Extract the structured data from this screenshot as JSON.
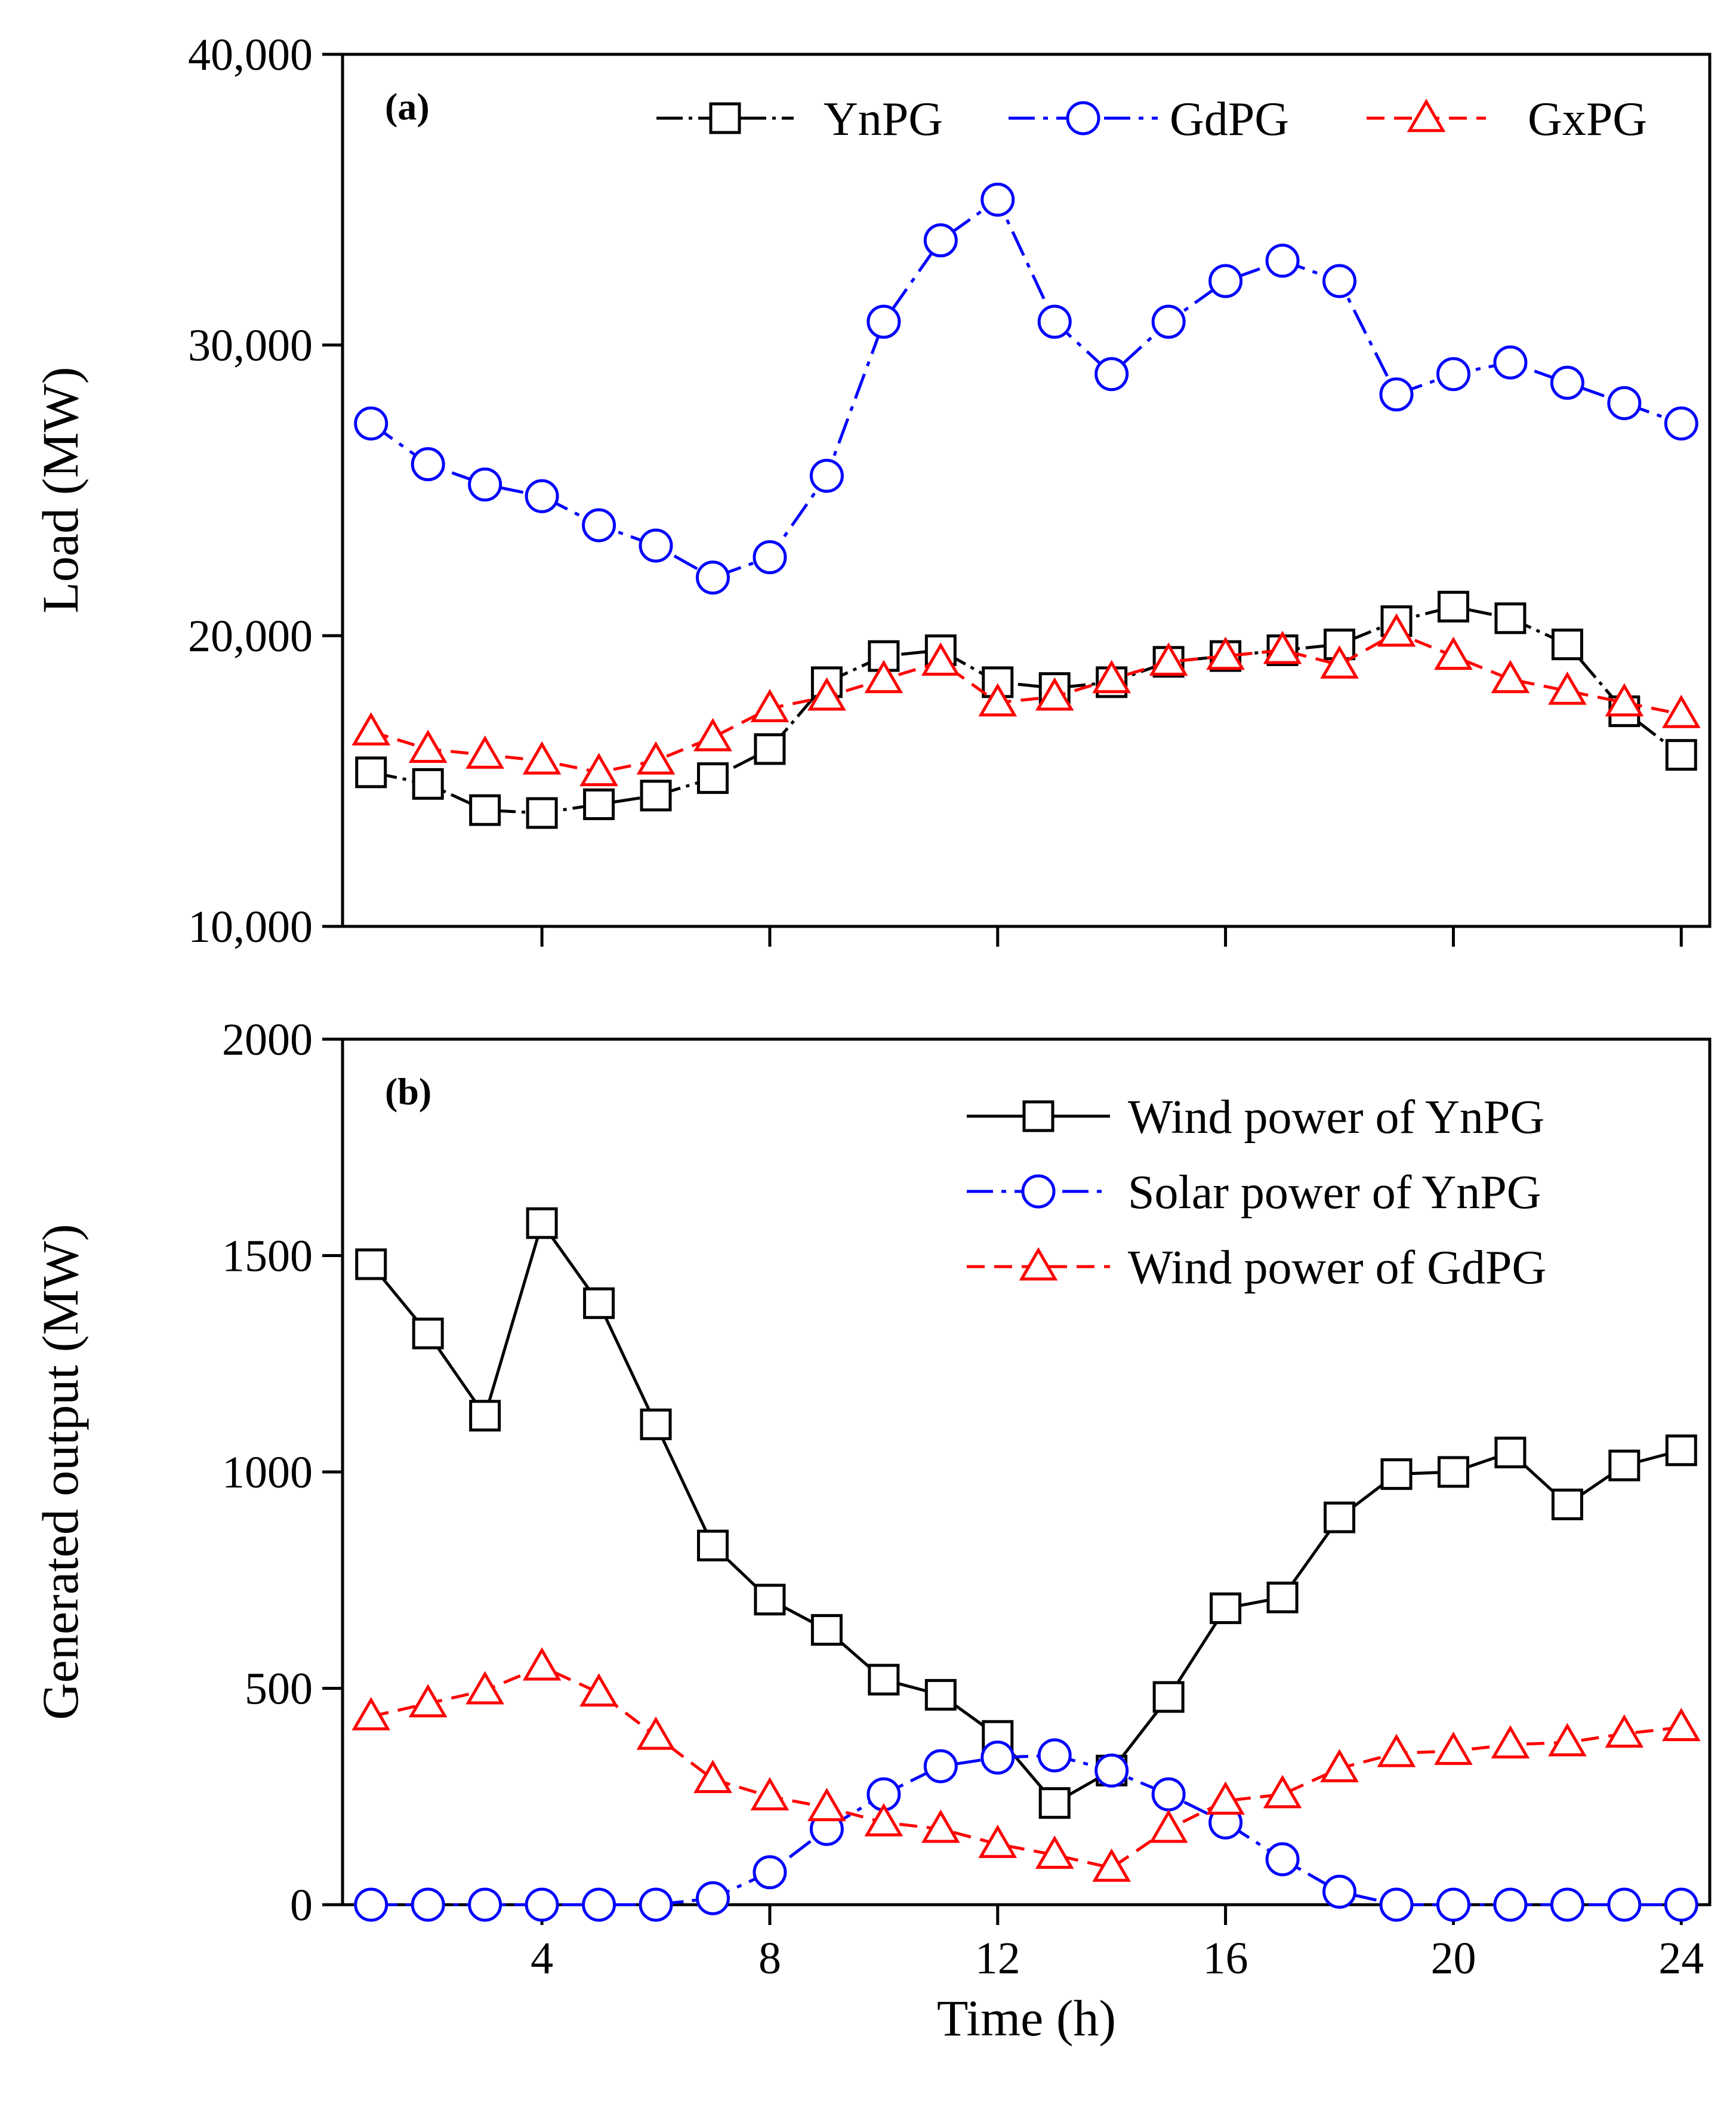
{
  "chart_data": [
    {
      "id": "a",
      "type": "line",
      "panel_label": "(a)",
      "title": "",
      "xlabel": "",
      "ylabel": "Load (MW)",
      "xlim": [
        0.5,
        24.5
      ],
      "ylim": [
        10000,
        40000
      ],
      "x_ticks": [
        4,
        8,
        12,
        16,
        20,
        24
      ],
      "y_ticks": [
        10000,
        20000,
        30000,
        40000
      ],
      "y_tick_labels": [
        "10,000",
        "20,000",
        "30,000",
        "40,000"
      ],
      "legend_position": "top-right",
      "x": [
        1,
        2,
        3,
        4,
        5,
        6,
        7,
        8,
        9,
        10,
        11,
        12,
        13,
        14,
        15,
        16,
        17,
        18,
        19,
        20,
        21,
        22,
        23,
        24
      ],
      "series": [
        {
          "name": "YnPG",
          "color": "#000000",
          "marker": "square",
          "dash": "solid-dot",
          "values": [
            15300,
            14900,
            14000,
            13900,
            14200,
            14500,
            15100,
            16100,
            18400,
            19300,
            19500,
            18400,
            18200,
            18400,
            19100,
            19300,
            19500,
            19700,
            20500,
            21000,
            20600,
            19700,
            17400,
            15900
          ]
        },
        {
          "name": "GdPG",
          "color": "#0000ff",
          "marker": "circle",
          "dash": "dashdot",
          "values": [
            27300,
            25900,
            25200,
            24800,
            23800,
            23100,
            22000,
            22700,
            25500,
            30800,
            33600,
            35000,
            30800,
            29000,
            30800,
            32200,
            32900,
            32200,
            28300,
            29000,
            29400,
            28700,
            28000,
            27300
          ]
        },
        {
          "name": "GxPG",
          "color": "#ff0000",
          "marker": "triangle",
          "dash": "dashed",
          "values": [
            16700,
            16100,
            15900,
            15700,
            15300,
            15700,
            16500,
            17500,
            17900,
            18500,
            19100,
            17700,
            17900,
            18500,
            19100,
            19300,
            19500,
            19000,
            20100,
            19300,
            18500,
            18100,
            17700,
            17300
          ]
        }
      ]
    },
    {
      "id": "b",
      "type": "line",
      "panel_label": "(b)",
      "title": "",
      "xlabel": "Time (h)",
      "ylabel": "Generated output (MW)",
      "xlim": [
        0.5,
        24.5
      ],
      "ylim": [
        0,
        2000
      ],
      "x_ticks": [
        4,
        8,
        12,
        16,
        20,
        24
      ],
      "x_tick_labels": [
        "4",
        "8",
        "12",
        "16",
        "20",
        "24"
      ],
      "y_ticks": [
        0,
        500,
        1000,
        1500,
        2000
      ],
      "y_tick_labels": [
        "0",
        "500",
        "1000",
        "1500",
        "2000"
      ],
      "legend_position": "top-right",
      "x": [
        1,
        2,
        3,
        4,
        5,
        6,
        7,
        8,
        9,
        10,
        11,
        12,
        13,
        14,
        15,
        16,
        17,
        18,
        19,
        20,
        21,
        22,
        23,
        24
      ],
      "series": [
        {
          "name": "Wind power of YnPG",
          "color": "#000000",
          "marker": "square",
          "dash": "solid",
          "values": [
            1480,
            1320,
            1130,
            1575,
            1390,
            1110,
            830,
            705,
            635,
            520,
            485,
            390,
            235,
            310,
            480,
            685,
            710,
            895,
            995,
            1000,
            1045,
            925,
            1015,
            1050
          ]
        },
        {
          "name": "Solar power of YnPG",
          "color": "#0000ff",
          "marker": "circle",
          "dash": "dashdot",
          "values": [
            0,
            0,
            0,
            0,
            0,
            0,
            15,
            75,
            175,
            255,
            320,
            340,
            345,
            310,
            255,
            190,
            105,
            30,
            0,
            0,
            0,
            0,
            0,
            0
          ]
        },
        {
          "name": "Wind power of GdPG",
          "color": "#ff0000",
          "marker": "triangle",
          "dash": "dashed",
          "values": [
            435,
            465,
            495,
            550,
            490,
            390,
            290,
            250,
            225,
            190,
            175,
            140,
            115,
            85,
            175,
            240,
            255,
            315,
            350,
            355,
            370,
            375,
            395,
            410
          ]
        }
      ]
    }
  ]
}
